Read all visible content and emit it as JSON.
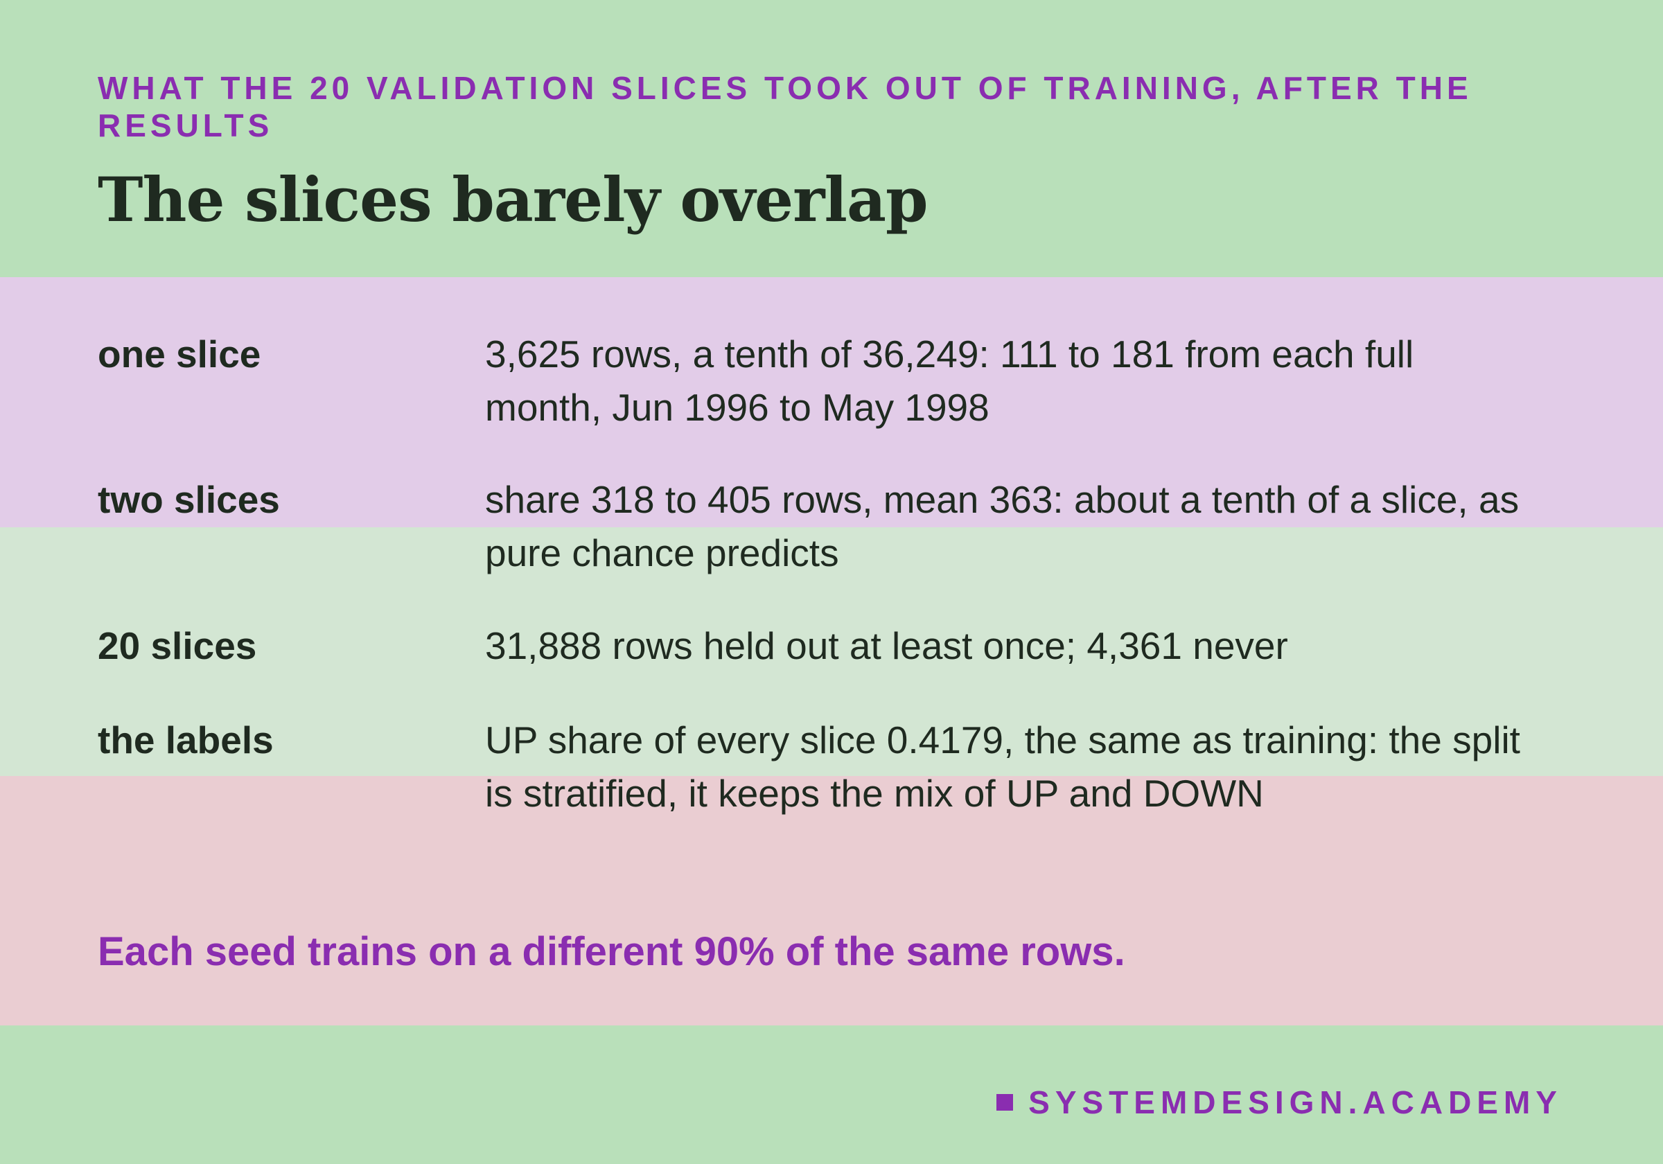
{
  "kicker": "What the 20 validation slices took out of training, after the results",
  "title": "The slices barely overlap",
  "rows": [
    {
      "label": "one slice",
      "text": "3,625 rows, a tenth of 36,249: 111 to 181 from each full month, Jun 1996 to May 1998"
    },
    {
      "label": "two slices",
      "text": "share 318 to 405 rows, mean 363: about a tenth of a slice, as pure chance predicts"
    },
    {
      "label": "20 slices",
      "text": "31,888 rows held out at least once; 4,361 never"
    },
    {
      "label": "the labels",
      "text": "UP share of every slice 0.4179, the same as training: the split is stratified, it keeps the mix of UP and DOWN"
    }
  ],
  "footer": "Each seed trains on a different 90% of the same rows.",
  "brand": "SYSTEMDESIGN.ACADEMY"
}
